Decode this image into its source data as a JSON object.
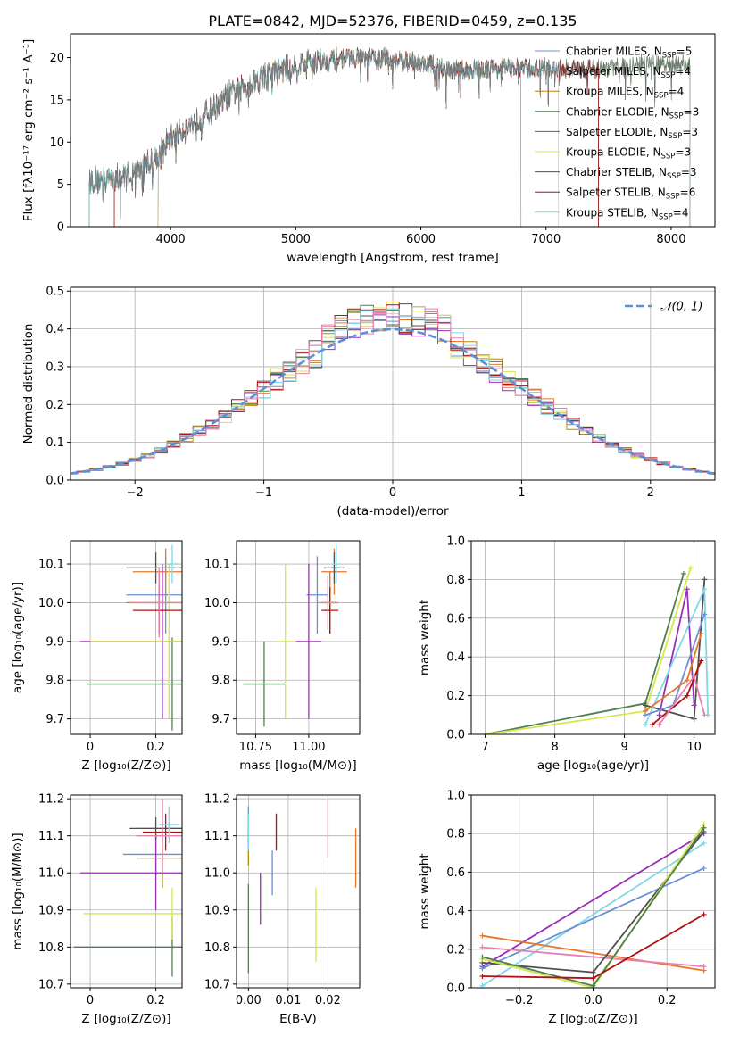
{
  "figure_title": "PLATE=0842, MJD=52376, FIBERID=0459, z=0.135",
  "colors": {
    "chabrier_miles": "#6b8fd6",
    "salpeter_miles": "#e8762d",
    "kroupa_miles": "#b8860b",
    "chabrier_elodie": "#4f7f4f",
    "salpeter_elodie": "#9b30b8",
    "kroupa_elodie": "#d4e64a",
    "chabrier_stelib": "#505050",
    "salpeter_stelib": "#b01010",
    "kroupa_stelib": "#7fd8e6",
    "pink": "#e87fb0",
    "normal": "#5b8fd6",
    "grid": "#b0b0b0"
  },
  "chart_data": [
    {
      "id": "spectrum",
      "type": "line",
      "xlabel": "wavelength [Angstrom, rest frame]",
      "ylabel": "Flux [fλ10⁻¹⁷ erg cm⁻² s⁻¹ A⁻¹]",
      "xlim": [
        3200,
        8350
      ],
      "ylim": [
        0,
        22.8
      ],
      "xticks": [
        4000,
        5000,
        6000,
        7000,
        8000
      ],
      "yticks": [
        0,
        5,
        10,
        15,
        20
      ],
      "grid": false,
      "legend_position": "top-right",
      "legend": [
        {
          "label": "Chabrier MILES, N",
          "sub": "SSP",
          "tail": "=5",
          "color": "chabrier_miles"
        },
        {
          "label": "Salpeter MILES, N",
          "sub": "SSP",
          "tail": "=4",
          "color": "salpeter_miles"
        },
        {
          "label": "Kroupa MILES, N",
          "sub": "SSP",
          "tail": "=4",
          "color": "kroupa_miles"
        },
        {
          "label": "Chabrier ELODIE, N",
          "sub": "SSP",
          "tail": "=3",
          "color": "chabrier_elodie"
        },
        {
          "label": "Salpeter ELODIE, N",
          "sub": "SSP",
          "tail": "=3",
          "color": "salpeter_elodie"
        },
        {
          "label": "Kroupa ELODIE, N",
          "sub": "SSP",
          "tail": "=3",
          "color": "kroupa_elodie"
        },
        {
          "label": "Chabrier STELIB, N",
          "sub": "SSP",
          "tail": "=3",
          "color": "chabrier_stelib"
        },
        {
          "label": "Salpeter STELIB, N",
          "sub": "SSP",
          "tail": "=6",
          "color": "salpeter_stelib"
        },
        {
          "label": "Kroupa STELIB, N",
          "sub": "SSP",
          "tail": "=4",
          "color": "kroupa_stelib"
        }
      ],
      "continuum": [
        [
          3350,
          5.4
        ],
        [
          3500,
          5.6
        ],
        [
          3700,
          6.2
        ],
        [
          3900,
          8.5
        ],
        [
          4000,
          10.5
        ],
        [
          4150,
          12.0
        ],
        [
          4300,
          13.5
        ],
        [
          4500,
          15.8
        ],
        [
          4700,
          17.5
        ],
        [
          4900,
          18.6
        ],
        [
          5100,
          19.5
        ],
        [
          5300,
          19.8
        ],
        [
          5500,
          20.0
        ],
        [
          5700,
          19.8
        ],
        [
          5900,
          19.6
        ],
        [
          6100,
          19.0
        ],
        [
          6300,
          18.4
        ],
        [
          6500,
          18.6
        ],
        [
          6700,
          18.8
        ],
        [
          6900,
          18.7
        ],
        [
          7100,
          18.6
        ],
        [
          7400,
          18.7
        ],
        [
          7700,
          19.0
        ],
        [
          8000,
          19.2
        ],
        [
          8150,
          19.0
        ]
      ],
      "model_ranges": [
        [
          3350,
          7420
        ],
        [
          3350,
          7420
        ],
        [
          3900,
          6800
        ],
        [
          3350,
          8150
        ],
        [
          3900,
          6800
        ],
        [
          3900,
          6800
        ],
        [
          3550,
          7420
        ],
        [
          3550,
          7420
        ],
        [
          3350,
          7100
        ]
      ]
    },
    {
      "id": "residual-histogram",
      "type": "bar",
      "xlabel": "(data-model)/error",
      "ylabel": "Normed distribution",
      "xlim": [
        -2.5,
        2.5
      ],
      "ylim": [
        0,
        0.51
      ],
      "xticks": [
        -2,
        -1,
        0,
        1,
        2
      ],
      "yticks": [
        0.0,
        0.1,
        0.2,
        0.3,
        0.4,
        0.5
      ],
      "grid": true,
      "legend_position": "top-right",
      "legend": [
        {
          "label": "𝒩(0, 1)",
          "color": "normal"
        }
      ],
      "bin_width": 0.1
    },
    {
      "id": "age-vs-Z",
      "type": "scatter",
      "xlabel": "Z [log₁₀(Z/Z⊙)]",
      "ylabel": "age  [log₁₀(age/yr)]",
      "xlim": [
        -0.06,
        0.28
      ],
      "ylim": [
        9.66,
        10.16
      ],
      "xticks": [
        0.0,
        0.2
      ],
      "yticks": [
        9.7,
        9.8,
        9.9,
        10.0,
        10.1
      ],
      "grid": true,
      "points": [
        {
          "x": 0.23,
          "y": 10.02,
          "xerr": 0.12,
          "yerr": 0.1,
          "color": "chabrier_miles"
        },
        {
          "x": 0.23,
          "y": 10.08,
          "xerr": 0.1,
          "yerr": 0.06,
          "color": "salpeter_miles"
        },
        {
          "x": 0.21,
          "y": 10.0,
          "xerr": 0.1,
          "yerr": 0.08,
          "color": "kroupa_miles"
        },
        {
          "x": 0.25,
          "y": 9.79,
          "xerr": 0.26,
          "yerr": 0.12,
          "color": "chabrier_elodie"
        },
        {
          "x": 0.22,
          "y": 9.9,
          "xerr": 0.25,
          "yerr": 0.2,
          "color": "salpeter_elodie"
        },
        {
          "x": 0.24,
          "y": 9.9,
          "xerr": 0.24,
          "yerr": 0.2,
          "color": "kroupa_elodie"
        },
        {
          "x": 0.2,
          "y": 10.09,
          "xerr": 0.09,
          "yerr": 0.04,
          "color": "chabrier_stelib"
        },
        {
          "x": 0.21,
          "y": 9.98,
          "xerr": 0.08,
          "yerr": 0.06,
          "color": "salpeter_stelib"
        },
        {
          "x": 0.25,
          "y": 10.1,
          "xerr": 0.02,
          "yerr": 0.05,
          "color": "kroupa_stelib"
        },
        {
          "x": 0.21,
          "y": 10.0,
          "xerr": 0.09,
          "yerr": 0.09,
          "color": "pink"
        }
      ]
    },
    {
      "id": "age-vs-mass",
      "type": "scatter",
      "xlabel": "mass [log₁₀(M/M⊙)]",
      "ylabel": "",
      "xlim": [
        10.66,
        11.24
      ],
      "ylim": [
        9.66,
        10.16
      ],
      "xticks": [
        10.75,
        11.0
      ],
      "tick_labels_x": [
        "10.75",
        "11.00"
      ],
      "yticks": [
        9.7,
        9.8,
        9.9,
        10.0,
        10.1
      ],
      "grid": true,
      "points": [
        {
          "x": 11.04,
          "y": 10.02,
          "xerr": 0.05,
          "yerr": 0.1,
          "color": "chabrier_miles"
        },
        {
          "x": 11.12,
          "y": 10.08,
          "xerr": 0.06,
          "yerr": 0.06,
          "color": "salpeter_miles"
        },
        {
          "x": 11.1,
          "y": 10.0,
          "xerr": 0.04,
          "yerr": 0.08,
          "color": "kroupa_miles"
        },
        {
          "x": 10.79,
          "y": 9.79,
          "xerr": 0.1,
          "yerr": 0.11,
          "color": "chabrier_elodie"
        },
        {
          "x": 11.0,
          "y": 9.9,
          "xerr": 0.06,
          "yerr": 0.2,
          "color": "salpeter_elodie"
        },
        {
          "x": 10.89,
          "y": 9.9,
          "xerr": 0.04,
          "yerr": 0.2,
          "color": "kroupa_elodie"
        },
        {
          "x": 11.12,
          "y": 10.09,
          "xerr": 0.05,
          "yerr": 0.04,
          "color": "chabrier_stelib"
        },
        {
          "x": 11.1,
          "y": 9.98,
          "xerr": 0.04,
          "yerr": 0.06,
          "color": "salpeter_stelib"
        },
        {
          "x": 11.13,
          "y": 10.1,
          "xerr": 0.02,
          "yerr": 0.05,
          "color": "kroupa_stelib"
        },
        {
          "x": 11.09,
          "y": 10.0,
          "xerr": 0.05,
          "yerr": 0.07,
          "color": "pink"
        }
      ]
    },
    {
      "id": "mass-weight-vs-age",
      "type": "line",
      "xlabel": "age  [log₁₀(age/yr)]",
      "ylabel": "mass weight",
      "xlim": [
        6.8,
        10.3
      ],
      "ylim": [
        0,
        1.0
      ],
      "xticks": [
        7,
        8,
        9,
        10
      ],
      "yticks": [
        0.0,
        0.2,
        0.4,
        0.6,
        0.8,
        1.0
      ],
      "grid": true,
      "series": [
        {
          "color": "chabrier_elodie",
          "x": [
            7.0,
            9.3,
            9.85
          ],
          "y": [
            0.0,
            0.16,
            0.83
          ]
        },
        {
          "color": "kroupa_elodie",
          "x": [
            7.0,
            9.3,
            9.95
          ],
          "y": [
            0.0,
            0.12,
            0.86
          ]
        },
        {
          "color": "chabrier_stelib",
          "x": [
            9.3,
            10.0,
            10.15
          ],
          "y": [
            0.15,
            0.08,
            0.8
          ]
        },
        {
          "color": "salpeter_elodie",
          "x": [
            9.5,
            9.9,
            10.0
          ],
          "y": [
            0.1,
            0.75,
            0.15
          ]
        },
        {
          "color": "kroupa_stelib",
          "x": [
            9.3,
            10.15,
            10.2
          ],
          "y": [
            0.05,
            0.75,
            0.1
          ]
        },
        {
          "color": "chabrier_miles",
          "x": [
            9.3,
            9.7,
            10.15
          ],
          "y": [
            0.1,
            0.15,
            0.62
          ]
        },
        {
          "color": "salpeter_stelib",
          "x": [
            9.4,
            9.9,
            10.1
          ],
          "y": [
            0.05,
            0.2,
            0.38
          ]
        },
        {
          "color": "salpeter_miles",
          "x": [
            9.3,
            9.9,
            10.1
          ],
          "y": [
            0.12,
            0.28,
            0.52
          ]
        },
        {
          "color": "pink",
          "x": [
            9.5,
            10.0,
            10.15
          ],
          "y": [
            0.05,
            0.3,
            0.1
          ]
        }
      ]
    },
    {
      "id": "mass-vs-Z",
      "type": "scatter",
      "xlabel": "Z [log₁₀(Z/Z⊙)]",
      "ylabel": "mass [log₁₀(M/M⊙)]",
      "xlim": [
        -0.06,
        0.28
      ],
      "ylim": [
        10.69,
        11.21
      ],
      "xticks": [
        0.0,
        0.2
      ],
      "yticks": [
        10.7,
        10.8,
        10.9,
        11.0,
        11.1,
        11.2
      ],
      "grid": true,
      "points": [
        {
          "x": 0.2,
          "y": 11.05,
          "xerr": 0.1,
          "yerr": 0.06,
          "color": "chabrier_miles"
        },
        {
          "x": 0.22,
          "y": 11.12,
          "xerr": 0.08,
          "yerr": 0.08,
          "color": "salpeter_miles"
        },
        {
          "x": 0.22,
          "y": 11.04,
          "xerr": 0.08,
          "yerr": 0.08,
          "color": "kroupa_miles"
        },
        {
          "x": 0.25,
          "y": 10.8,
          "xerr": 0.3,
          "yerr": 0.08,
          "color": "chabrier_elodie"
        },
        {
          "x": 0.2,
          "y": 11.0,
          "xerr": 0.23,
          "yerr": 0.1,
          "color": "salpeter_elodie"
        },
        {
          "x": 0.25,
          "y": 10.89,
          "xerr": 0.27,
          "yerr": 0.07,
          "color": "kroupa_elodie"
        },
        {
          "x": 0.2,
          "y": 11.12,
          "xerr": 0.08,
          "yerr": 0.03,
          "color": "chabrier_stelib"
        },
        {
          "x": 0.23,
          "y": 11.11,
          "xerr": 0.07,
          "yerr": 0.05,
          "color": "salpeter_stelib"
        },
        {
          "x": 0.24,
          "y": 11.13,
          "xerr": 0.03,
          "yerr": 0.05,
          "color": "kroupa_stelib"
        },
        {
          "x": 0.22,
          "y": 11.1,
          "xerr": 0.08,
          "yerr": 0.1,
          "color": "pink"
        }
      ]
    },
    {
      "id": "mass-vs-ebv",
      "type": "scatter",
      "xlabel": "E(B-V)",
      "ylabel": "",
      "xlim": [
        -0.003,
        0.028
      ],
      "ylim": [
        10.69,
        11.21
      ],
      "xticks": [
        0.0,
        0.01,
        0.02
      ],
      "tick_labels_x": [
        "0.00",
        "0.01",
        "0.02"
      ],
      "yticks": [
        10.7,
        10.8,
        10.9,
        11.0,
        11.1,
        11.2
      ],
      "grid": true,
      "points": [
        {
          "x": 0.0,
          "y": 11.12,
          "yerr": 0.06,
          "color": "chabrier_miles"
        },
        {
          "x": 0.027,
          "y": 11.04,
          "yerr": 0.08,
          "color": "salpeter_miles"
        },
        {
          "x": 0.0,
          "y": 11.07,
          "yerr": 0.05,
          "color": "kroupa_miles"
        },
        {
          "x": 0.0,
          "y": 10.85,
          "yerr": 0.12,
          "color": "chabrier_elodie"
        },
        {
          "x": 0.003,
          "y": 10.93,
          "yerr": 0.07,
          "color": "salpeter_elodie"
        },
        {
          "x": 0.017,
          "y": 10.86,
          "yerr": 0.1,
          "color": "kroupa_elodie"
        },
        {
          "x": 0.0,
          "y": 11.12,
          "yerr": 0.04,
          "color": "chabrier_stelib"
        },
        {
          "x": 0.007,
          "y": 11.11,
          "yerr": 0.05,
          "color": "salpeter_stelib"
        },
        {
          "x": 0.0,
          "y": 11.11,
          "yerr": 0.05,
          "color": "kroupa_stelib"
        },
        {
          "x": 0.02,
          "y": 11.12,
          "yerr": 0.08,
          "color": "pink"
        },
        {
          "x": 0.006,
          "y": 11.0,
          "yerr": 0.06,
          "color": "chabrier_miles"
        }
      ]
    },
    {
      "id": "mass-weight-vs-Z",
      "type": "line",
      "xlabel": "Z [log₁₀(Z/Z⊙)]",
      "ylabel": "mass weight",
      "xlim": [
        -0.33,
        0.33
      ],
      "ylim": [
        0,
        1.0
      ],
      "xticks": [
        -0.2,
        0.0,
        0.2
      ],
      "tick_labels_x": [
        "−0.2",
        "0.0",
        "0.2"
      ],
      "yticks": [
        0.0,
        0.2,
        0.4,
        0.6,
        0.8,
        1.0
      ],
      "grid": true,
      "series": [
        {
          "color": "salpeter_elodie",
          "x": [
            -0.3,
            0.3
          ],
          "y": [
            0.11,
            0.8
          ]
        },
        {
          "color": "kroupa_stelib",
          "x": [
            -0.3,
            0.3
          ],
          "y": [
            0.01,
            0.75
          ]
        },
        {
          "color": "chabrier_miles",
          "x": [
            -0.3,
            0.3
          ],
          "y": [
            0.1,
            0.62
          ]
        },
        {
          "color": "salpeter_miles",
          "x": [
            -0.3,
            0.3
          ],
          "y": [
            0.27,
            0.09
          ]
        },
        {
          "color": "pink",
          "x": [
            -0.3,
            0.3
          ],
          "y": [
            0.21,
            0.11
          ]
        },
        {
          "color": "chabrier_stelib",
          "x": [
            -0.3,
            0.0,
            0.3
          ],
          "y": [
            0.13,
            0.08,
            0.81
          ]
        },
        {
          "color": "kroupa_elodie",
          "x": [
            -0.3,
            0.0,
            0.3
          ],
          "y": [
            0.15,
            0.0,
            0.85
          ]
        },
        {
          "color": "chabrier_elodie",
          "x": [
            -0.3,
            0.0,
            0.3
          ],
          "y": [
            0.16,
            0.01,
            0.83
          ]
        },
        {
          "color": "salpeter_stelib",
          "x": [
            -0.3,
            0.0,
            0.3
          ],
          "y": [
            0.06,
            0.05,
            0.38
          ]
        }
      ]
    }
  ]
}
